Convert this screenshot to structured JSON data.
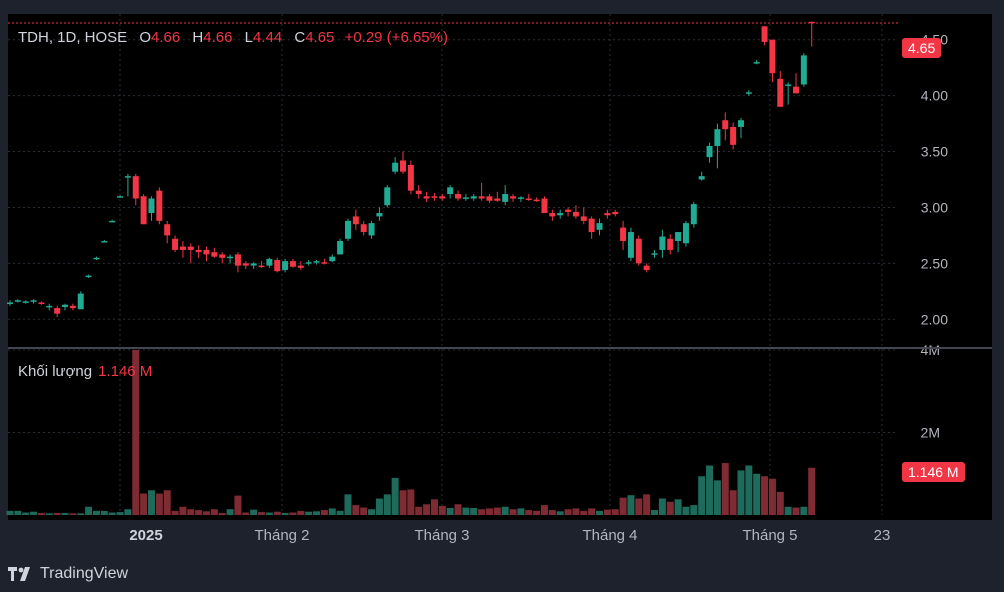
{
  "legend": {
    "symbol": "TDH, 1D, HOSE",
    "o_label": "O",
    "o": "4.66",
    "h_label": "H",
    "h": "4.66",
    "l_label": "L",
    "l": "4.44",
    "c_label": "C",
    "c": "4.65",
    "change": "+0.29 (+6.65%)"
  },
  "volume_legend": {
    "label": "Khối lượng",
    "value": "1.146 M"
  },
  "last_price_tag": "4.65",
  "last_volume_tag": "1.146 M",
  "brand": {
    "name": "TradingView"
  },
  "colors": {
    "up": "#22ab94",
    "down": "#f23645",
    "vol_up": "#1e6b5c",
    "vol_down": "#7f2b33",
    "background": "#000000",
    "frame": "#1e222d"
  },
  "chart_data": {
    "type": "candlestick",
    "y_ticks": [
      "2.00",
      "2.50",
      "3.00",
      "3.50",
      "4.00",
      "4.50"
    ],
    "ylim": [
      1.77,
      4.73
    ],
    "vol_ticks": [
      "2M",
      "4M"
    ],
    "vol_ylim": [
      0,
      4.0
    ],
    "x_ticks": [
      "2025",
      "Tháng 2",
      "Tháng 3",
      "Tháng 4",
      "Tháng 5",
      "23"
    ],
    "grid": true,
    "candles": [
      [
        2.15,
        2.17,
        2.12,
        2.15
      ],
      [
        2.17,
        2.18,
        2.15,
        2.17
      ],
      [
        2.15,
        2.17,
        2.14,
        2.16
      ],
      [
        2.16,
        2.18,
        2.14,
        2.17
      ],
      [
        2.15,
        2.16,
        2.13,
        2.14
      ],
      [
        2.12,
        2.14,
        2.08,
        2.12
      ],
      [
        2.1,
        2.12,
        2.02,
        2.05
      ],
      [
        2.11,
        2.14,
        2.08,
        2.13
      ],
      [
        2.12,
        2.14,
        2.08,
        2.1
      ],
      [
        2.09,
        2.25,
        2.09,
        2.23
      ],
      [
        2.38,
        2.4,
        2.37,
        2.39
      ],
      [
        2.55,
        2.56,
        2.53,
        2.55
      ],
      [
        2.7,
        2.71,
        2.69,
        2.7
      ],
      [
        2.88,
        2.89,
        2.87,
        2.88
      ],
      [
        3.1,
        3.11,
        3.09,
        3.1
      ],
      [
        3.28,
        3.3,
        3.1,
        3.28
      ],
      [
        3.28,
        3.3,
        3.02,
        3.08
      ],
      [
        3.1,
        3.12,
        2.85,
        2.85
      ],
      [
        2.95,
        3.1,
        2.88,
        3.08
      ],
      [
        3.15,
        3.18,
        2.85,
        2.88
      ],
      [
        2.85,
        2.88,
        2.68,
        2.75
      ],
      [
        2.72,
        2.75,
        2.6,
        2.62
      ],
      [
        2.65,
        2.7,
        2.55,
        2.62
      ],
      [
        2.65,
        2.68,
        2.5,
        2.62
      ],
      [
        2.62,
        2.66,
        2.55,
        2.6
      ],
      [
        2.62,
        2.65,
        2.52,
        2.58
      ],
      [
        2.6,
        2.64,
        2.55,
        2.56
      ],
      [
        2.58,
        2.6,
        2.5,
        2.55
      ],
      [
        2.55,
        2.58,
        2.5,
        2.56
      ],
      [
        2.58,
        2.6,
        2.42,
        2.48
      ],
      [
        2.5,
        2.52,
        2.45,
        2.48
      ],
      [
        2.48,
        2.51,
        2.45,
        2.5
      ],
      [
        2.48,
        2.52,
        2.46,
        2.47
      ],
      [
        2.48,
        2.55,
        2.46,
        2.54
      ],
      [
        2.53,
        2.55,
        2.42,
        2.43
      ],
      [
        2.44,
        2.54,
        2.42,
        2.52
      ],
      [
        2.52,
        2.54,
        2.46,
        2.47
      ],
      [
        2.48,
        2.52,
        2.44,
        2.46
      ],
      [
        2.5,
        2.53,
        2.48,
        2.51
      ],
      [
        2.51,
        2.53,
        2.49,
        2.52
      ],
      [
        2.51,
        2.54,
        2.49,
        2.5
      ],
      [
        2.52,
        2.58,
        2.51,
        2.56
      ],
      [
        2.58,
        2.72,
        2.58,
        2.7
      ],
      [
        2.72,
        2.9,
        2.7,
        2.88
      ],
      [
        2.92,
        2.98,
        2.8,
        2.85
      ],
      [
        2.85,
        2.88,
        2.75,
        2.78
      ],
      [
        2.75,
        2.88,
        2.72,
        2.86
      ],
      [
        2.92,
        3.0,
        2.88,
        2.95
      ],
      [
        3.02,
        3.2,
        3.0,
        3.18
      ],
      [
        3.32,
        3.45,
        3.3,
        3.4
      ],
      [
        3.42,
        3.5,
        3.3,
        3.32
      ],
      [
        3.38,
        3.42,
        3.12,
        3.15
      ],
      [
        3.15,
        3.2,
        3.08,
        3.12
      ],
      [
        3.1,
        3.14,
        3.05,
        3.08
      ],
      [
        3.1,
        3.13,
        3.06,
        3.09
      ],
      [
        3.1,
        3.12,
        3.06,
        3.08
      ],
      [
        3.12,
        3.2,
        3.08,
        3.18
      ],
      [
        3.12,
        3.15,
        3.06,
        3.08
      ],
      [
        3.08,
        3.12,
        3.06,
        3.09
      ],
      [
        3.08,
        3.12,
        3.06,
        3.1
      ],
      [
        3.1,
        3.22,
        3.06,
        3.08
      ],
      [
        3.1,
        3.12,
        3.04,
        3.06
      ],
      [
        3.08,
        3.14,
        3.05,
        3.06
      ],
      [
        3.05,
        3.2,
        3.02,
        3.12
      ],
      [
        3.1,
        3.12,
        3.05,
        3.08
      ],
      [
        3.08,
        3.1,
        3.05,
        3.09
      ],
      [
        3.08,
        3.12,
        3.06,
        3.07
      ],
      [
        3.07,
        3.09,
        3.05,
        3.06
      ],
      [
        3.08,
        3.1,
        2.95,
        2.95
      ],
      [
        2.95,
        2.98,
        2.88,
        2.92
      ],
      [
        2.93,
        2.98,
        2.9,
        2.95
      ],
      [
        2.98,
        3.0,
        2.92,
        2.96
      ],
      [
        2.96,
        3.02,
        2.9,
        2.92
      ],
      [
        2.92,
        3.0,
        2.85,
        2.88
      ],
      [
        2.9,
        2.92,
        2.72,
        2.78
      ],
      [
        2.8,
        2.9,
        2.75,
        2.86
      ],
      [
        2.95,
        2.98,
        2.9,
        2.93
      ],
      [
        2.96,
        2.98,
        2.92,
        2.94
      ],
      [
        2.82,
        2.88,
        2.62,
        2.7
      ],
      [
        2.55,
        2.82,
        2.52,
        2.78
      ],
      [
        2.72,
        2.75,
        2.48,
        2.5
      ],
      [
        2.48,
        2.5,
        2.42,
        2.44
      ],
      [
        2.58,
        2.62,
        2.55,
        2.59
      ],
      [
        2.62,
        2.8,
        2.55,
        2.74
      ],
      [
        2.72,
        2.76,
        2.58,
        2.62
      ],
      [
        2.7,
        2.78,
        2.6,
        2.78
      ],
      [
        2.68,
        2.88,
        2.65,
        2.86
      ],
      [
        2.85,
        3.05,
        2.82,
        3.03
      ],
      [
        3.25,
        3.32,
        3.24,
        3.28
      ],
      [
        3.45,
        3.58,
        3.4,
        3.55
      ],
      [
        3.55,
        3.75,
        3.35,
        3.7
      ],
      [
        3.78,
        3.85,
        3.6,
        3.7
      ],
      [
        3.72,
        3.76,
        3.52,
        3.56
      ],
      [
        3.72,
        3.8,
        3.62,
        3.78
      ],
      [
        4.02,
        4.05,
        4.0,
        4.03
      ],
      [
        4.3,
        4.32,
        4.28,
        4.3
      ],
      [
        4.62,
        4.62,
        4.45,
        4.48
      ],
      [
        4.5,
        4.5,
        4.12,
        4.2
      ],
      [
        4.15,
        4.22,
        3.9,
        3.9
      ],
      [
        4.1,
        4.12,
        3.92,
        4.1
      ],
      [
        4.08,
        4.2,
        4.02,
        4.02
      ],
      [
        4.1,
        4.38,
        4.08,
        4.36
      ],
      [
        4.66,
        4.66,
        4.44,
        4.65
      ]
    ],
    "volume_millions": [
      0.1,
      0.1,
      0.06,
      0.08,
      0.05,
      0.04,
      0.05,
      0.05,
      0.04,
      0.04,
      0.2,
      0.1,
      0.1,
      0.06,
      0.07,
      0.14,
      4.0,
      0.52,
      0.6,
      0.52,
      0.6,
      0.1,
      0.2,
      0.14,
      0.12,
      0.09,
      0.14,
      0.05,
      0.14,
      0.47,
      0.06,
      0.13,
      0.07,
      0.06,
      0.08,
      0.05,
      0.06,
      0.1,
      0.08,
      0.09,
      0.12,
      0.16,
      0.1,
      0.5,
      0.24,
      0.18,
      0.14,
      0.4,
      0.5,
      0.9,
      0.6,
      0.62,
      0.2,
      0.26,
      0.38,
      0.22,
      0.17,
      0.26,
      0.18,
      0.17,
      0.14,
      0.16,
      0.18,
      0.2,
      0.14,
      0.16,
      0.12,
      0.1,
      0.24,
      0.12,
      0.09,
      0.14,
      0.16,
      0.1,
      0.16,
      0.1,
      0.13,
      0.14,
      0.42,
      0.48,
      0.4,
      0.5,
      0.12,
      0.4,
      0.32,
      0.38,
      0.2,
      0.24,
      0.94,
      1.2,
      0.84,
      1.26,
      0.6,
      1.08,
      1.2,
      1.0,
      0.94,
      0.88,
      0.56,
      0.2,
      0.18,
      0.2,
      1.146
    ]
  }
}
